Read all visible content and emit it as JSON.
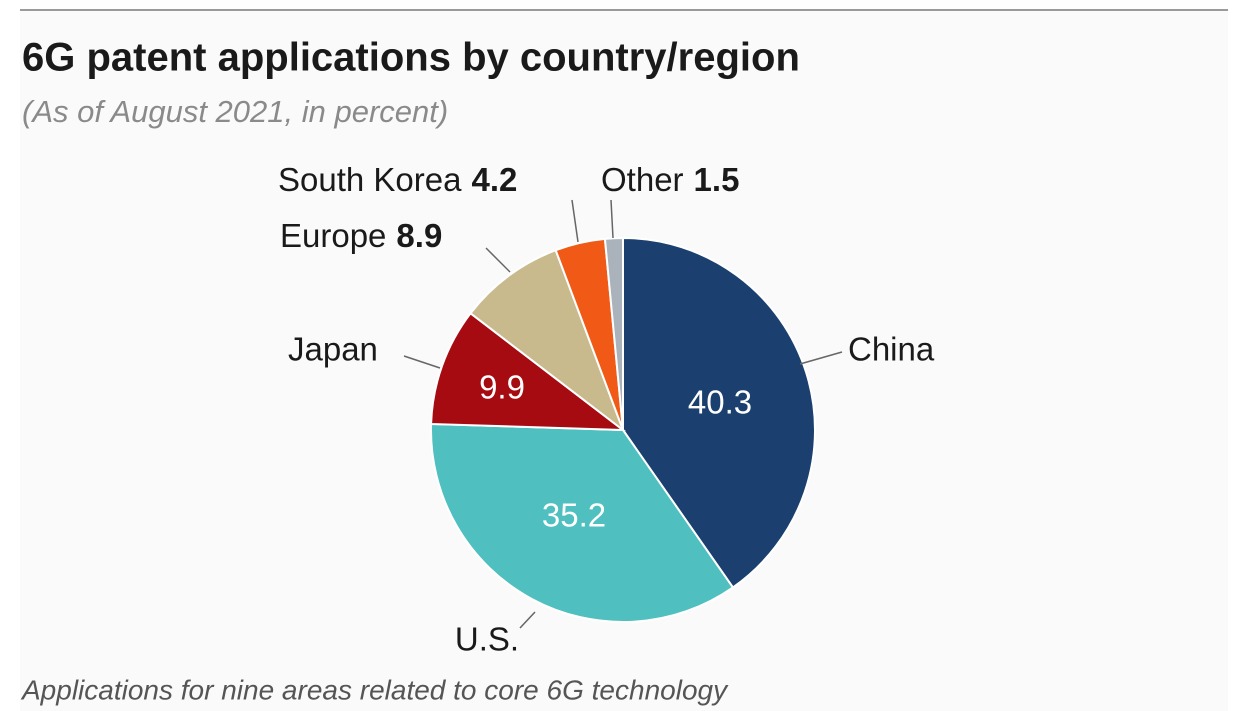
{
  "chart_data": {
    "type": "pie",
    "title": "6G patent applications by country/region",
    "subtitle": "(As of August 2021, in percent)",
    "footnote": "Applications for nine areas related to core 6G technology",
    "categories": [
      "China",
      "U.S.",
      "Japan",
      "Europe",
      "South Korea",
      "Other"
    ],
    "values": [
      40.3,
      35.2,
      9.9,
      8.9,
      4.2,
      1.5
    ],
    "colors": [
      "#1b406f",
      "#4fc0bf",
      "#a70b12",
      "#c9ba8e",
      "#f05a16",
      "#aab3bb"
    ]
  }
}
